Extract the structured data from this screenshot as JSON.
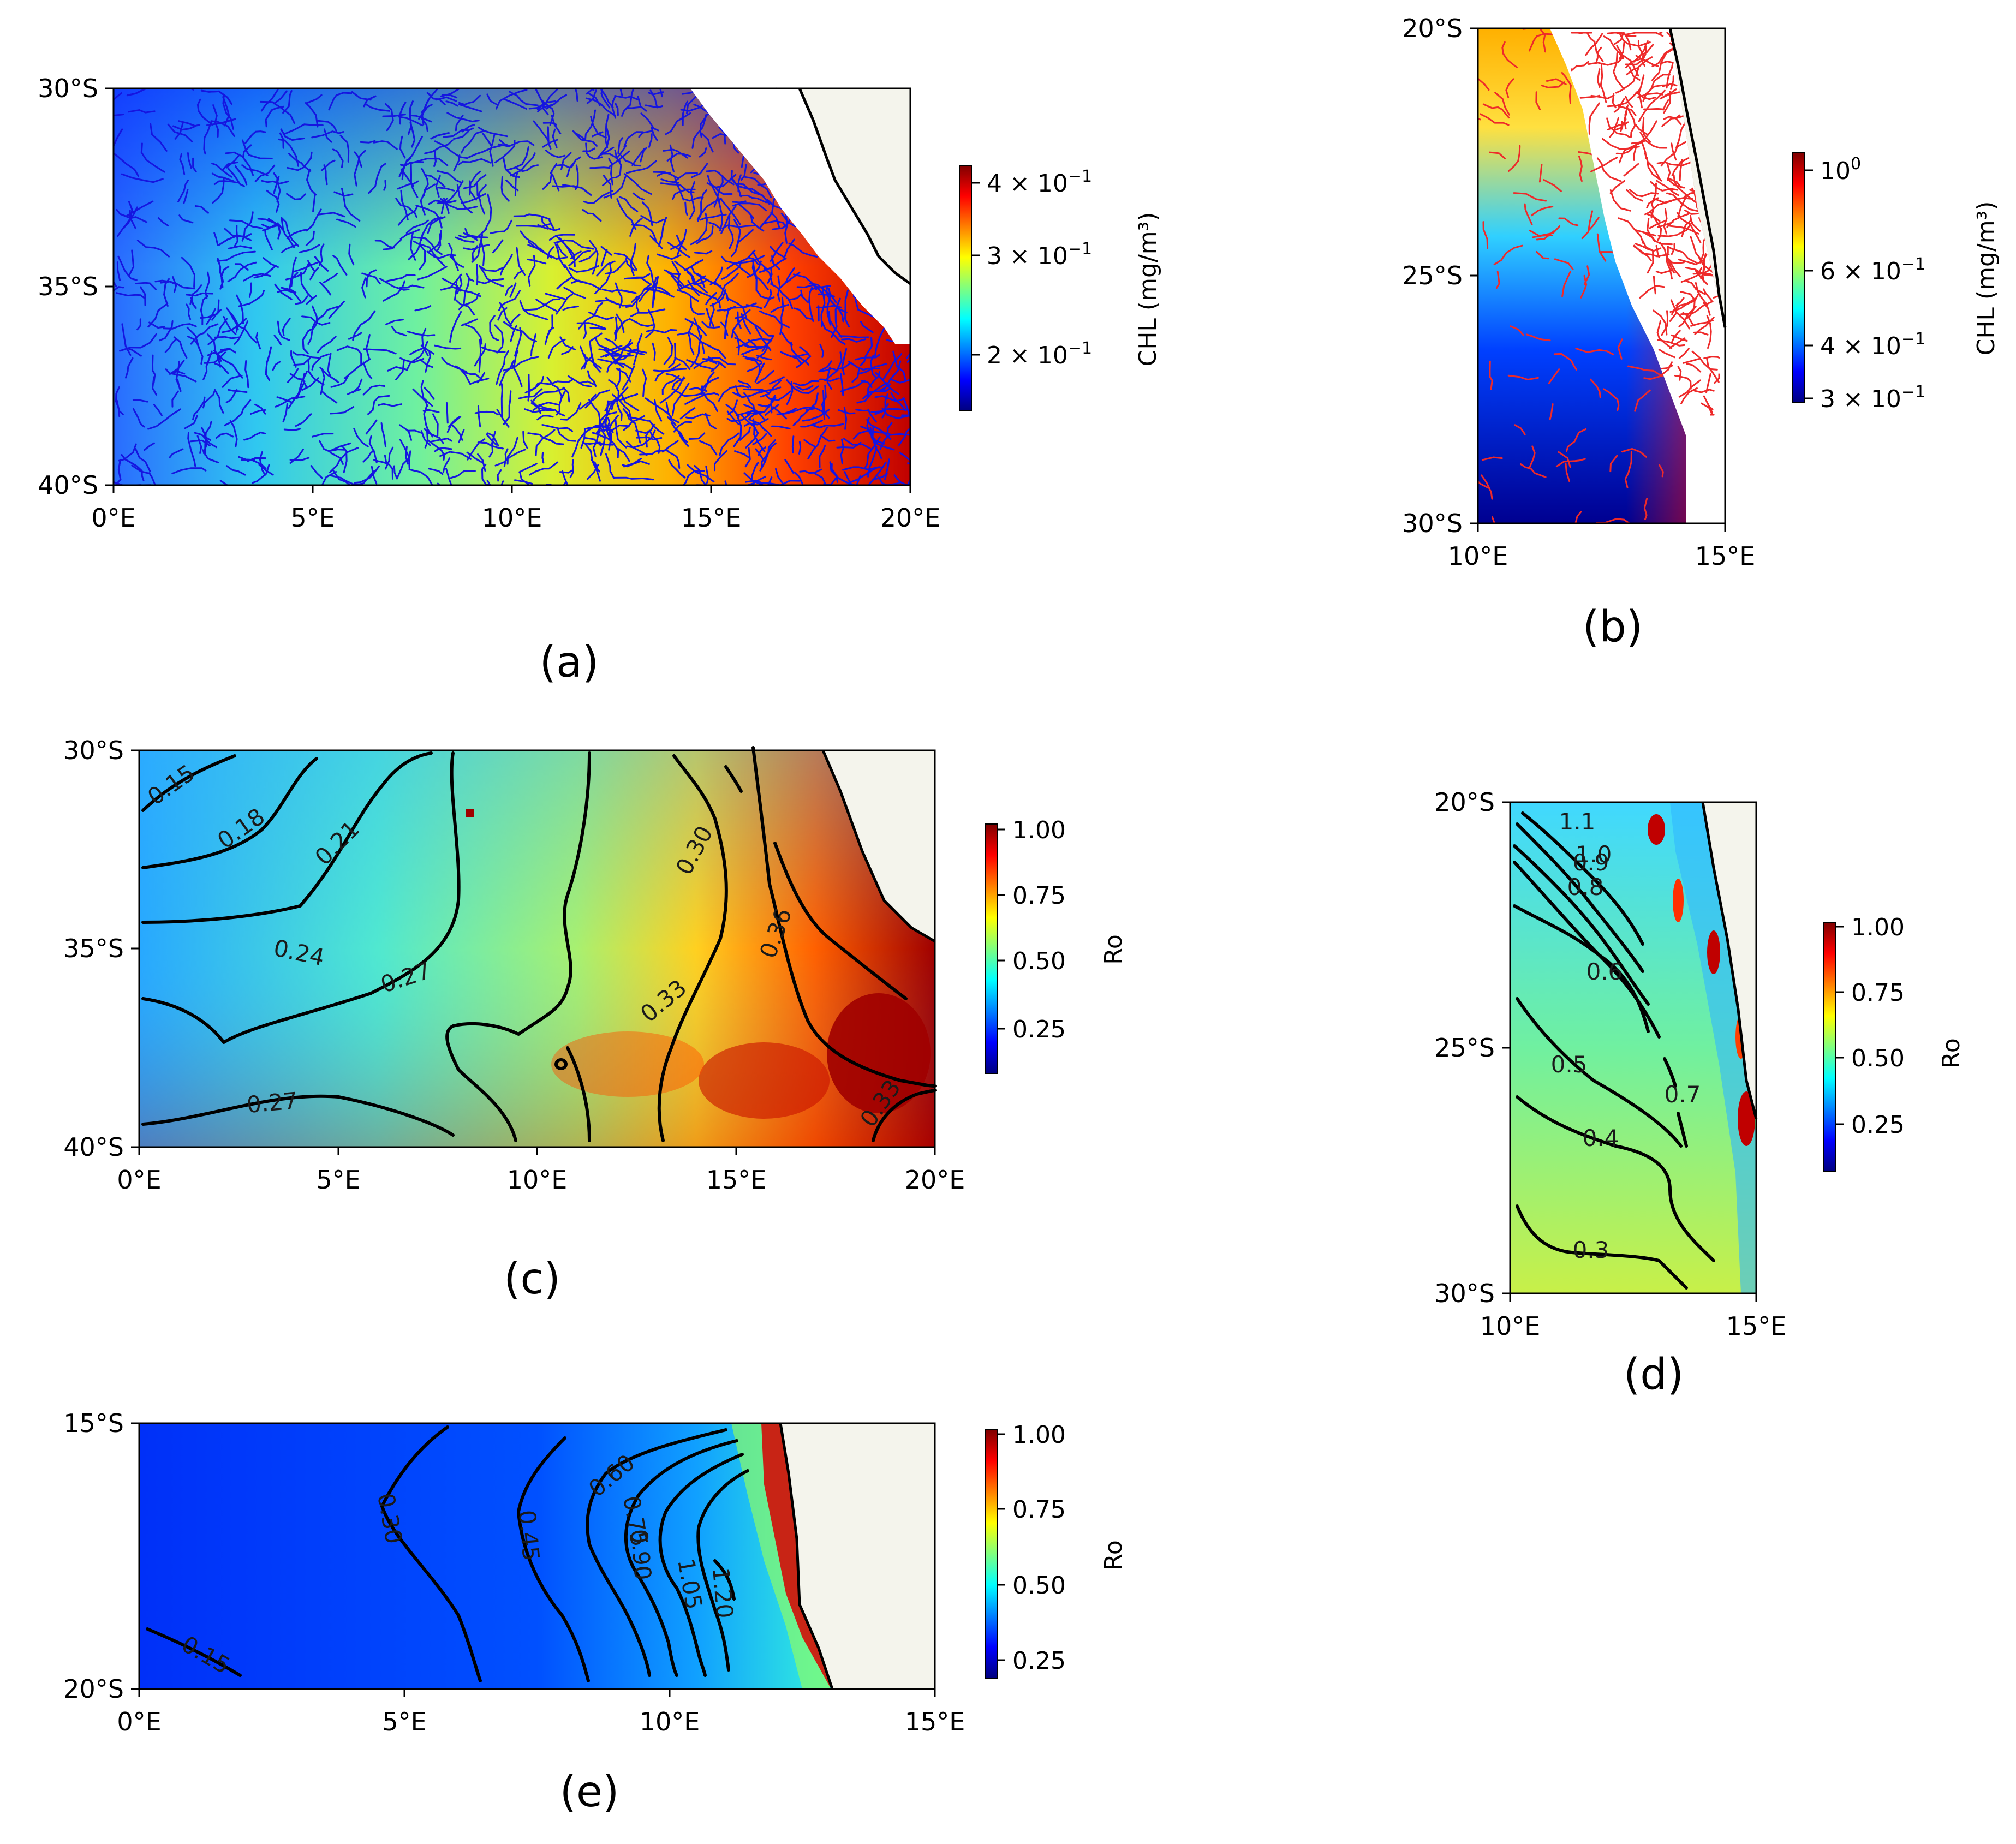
{
  "figure": {
    "panels": [
      {
        "id": "a",
        "caption": "(a)"
      },
      {
        "id": "b",
        "caption": "(b)"
      },
      {
        "id": "c",
        "caption": "(c)"
      },
      {
        "id": "d",
        "caption": "(d)"
      },
      {
        "id": "e",
        "caption": "(e)"
      }
    ]
  },
  "colors": {
    "colormap": "jet",
    "land": "#f4f4ec",
    "coastline": "#000000",
    "contour": "#000000",
    "trajectories_a": "#1515e0",
    "trajectories_b": "#ee2a2a"
  },
  "chart_data": [
    {
      "panel": "a",
      "type": "heatmap",
      "field": "CHL",
      "overlay": "particle trajectories (blue)",
      "xlim": [
        0,
        20
      ],
      "ylim": [
        -40,
        -30
      ],
      "x_ticks": [
        "0°E",
        "5°E",
        "10°E",
        "15°E",
        "20°E"
      ],
      "y_ticks": [
        "30°S",
        "35°S",
        "40°S"
      ],
      "colorbar": {
        "label": "CHL (mg/m³)",
        "scale": "log",
        "range": [
          0.15,
          0.43
        ],
        "ticks": [
          {
            "base": "4 × 10",
            "exp": "−1"
          },
          {
            "base": "3 × 10",
            "exp": "−1"
          },
          {
            "base": "2 × 10",
            "exp": "−1"
          }
        ]
      },
      "values_description_by_longitude": [
        {
          "lon": 0,
          "chl": 0.16
        },
        {
          "lon": 5,
          "chl": 0.22
        },
        {
          "lon": 10,
          "chl": 0.28
        },
        {
          "lon": 15,
          "chl": 0.34
        },
        {
          "lon": 18,
          "chl": 0.43
        }
      ]
    },
    {
      "panel": "b",
      "type": "heatmap",
      "field": "CHL",
      "overlay": "particle trajectories (red)",
      "xlim": [
        10,
        15
      ],
      "ylim": [
        -30,
        -20
      ],
      "x_ticks": [
        "10°E",
        "15°E"
      ],
      "y_ticks": [
        "20°S",
        "25°S",
        "30°S"
      ],
      "colorbar": {
        "label": "CHL (mg/m³)",
        "scale": "log",
        "range": [
          0.28,
          1.1
        ],
        "ticks": [
          {
            "base": "10",
            "exp": "0"
          },
          {
            "base": "6 × 10",
            "exp": "−1"
          },
          {
            "base": "4 × 10",
            "exp": "−1"
          },
          {
            "base": "3 × 10",
            "exp": "−1"
          }
        ]
      }
    },
    {
      "panel": "c",
      "type": "heatmap",
      "field": "Ro",
      "overlay": "contours",
      "xlim": [
        0,
        20
      ],
      "ylim": [
        -40,
        -30
      ],
      "x_ticks": [
        "0°E",
        "5°E",
        "10°E",
        "15°E",
        "20°E"
      ],
      "y_ticks": [
        "30°S",
        "35°S",
        "40°S"
      ],
      "colorbar": {
        "label": "Ro",
        "range": [
          0.05,
          1.0
        ],
        "ticks": [
          "1.00",
          "0.75",
          "0.50",
          "0.25"
        ]
      },
      "contour_labels": [
        "0.15",
        "0.18",
        "0.21",
        "0.24",
        "0.27",
        "0.27",
        "0.30",
        "0.33",
        "0.36",
        "0.33"
      ]
    },
    {
      "panel": "d",
      "type": "heatmap",
      "field": "Ro",
      "overlay": "contours",
      "xlim": [
        10,
        15
      ],
      "ylim": [
        -30,
        -20
      ],
      "x_ticks": [
        "10°E",
        "15°E"
      ],
      "y_ticks": [
        "20°S",
        "25°S",
        "30°S"
      ],
      "colorbar": {
        "label": "Ro",
        "range": [
          0.05,
          1.0
        ],
        "ticks": [
          "1.00",
          "0.75",
          "0.50",
          "0.25"
        ]
      },
      "contour_labels": [
        "1.1",
        "1.0",
        "0.9",
        "0.8",
        "0.6",
        "0.5",
        "0.7",
        "0.4",
        "0.3"
      ]
    },
    {
      "panel": "e",
      "type": "heatmap",
      "field": "Ro",
      "overlay": "contours",
      "xlim": [
        0,
        15
      ],
      "ylim": [
        -20,
        -15
      ],
      "x_ticks": [
        "0°E",
        "5°E",
        "10°E",
        "15°E"
      ],
      "y_ticks": [
        "15°S",
        "20°S"
      ],
      "colorbar": {
        "label": "Ro",
        "range": [
          0.18,
          1.0
        ],
        "ticks": [
          "1.00",
          "0.75",
          "0.50",
          "0.25"
        ]
      },
      "contour_labels": [
        "0.15",
        "0.30",
        "0.45",
        "0.60",
        "0.75",
        "0.90",
        "1.05",
        "1.20"
      ]
    }
  ]
}
